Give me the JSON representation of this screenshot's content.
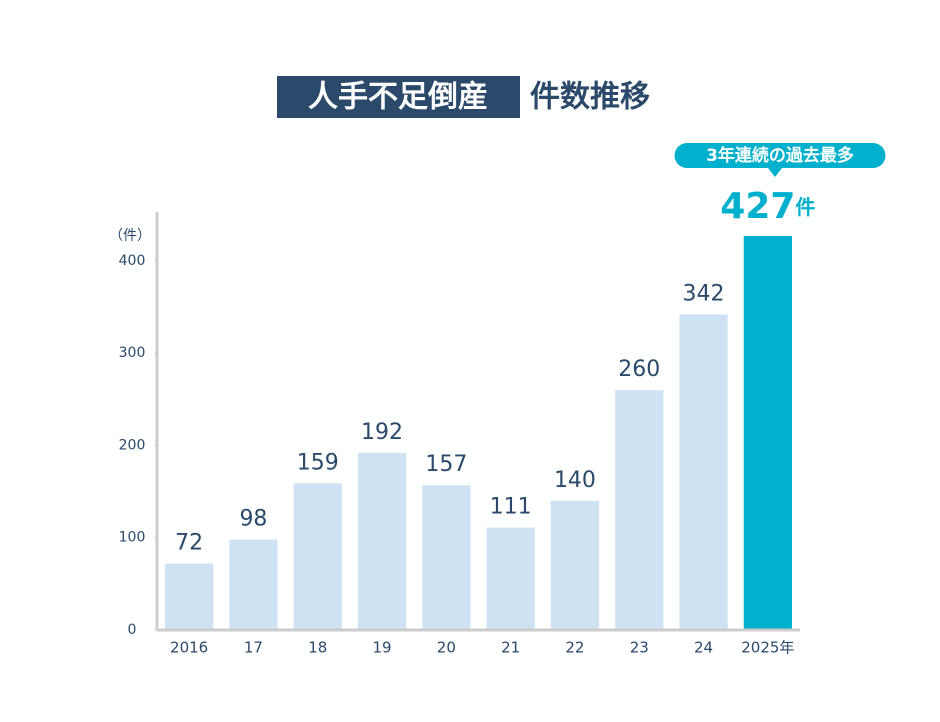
{
  "chart_data": {
    "type": "bar",
    "title_highlight": "人手不足倒産",
    "title": "件数推移",
    "y_unit_label": "（件）",
    "value_unit": "件",
    "callout": "3年連続の過去最多",
    "categories": [
      "2016",
      "17",
      "18",
      "19",
      "20",
      "21",
      "22",
      "23",
      "24",
      "2025年"
    ],
    "values": [
      72,
      98,
      159,
      192,
      157,
      111,
      140,
      260,
      342,
      427
    ],
    "colors": [
      "#cfe2f3",
      "#cfe2f3",
      "#cfe2f3",
      "#cfe2f3",
      "#cfe2f3",
      "#cfe2f3",
      "#cfe2f3",
      "#cfe2f3",
      "#cfe2f3",
      "#00b0cc"
    ],
    "ylim": [
      0,
      453
    ],
    "yticks": [
      0,
      100,
      200,
      300,
      400
    ],
    "grid": false
  }
}
